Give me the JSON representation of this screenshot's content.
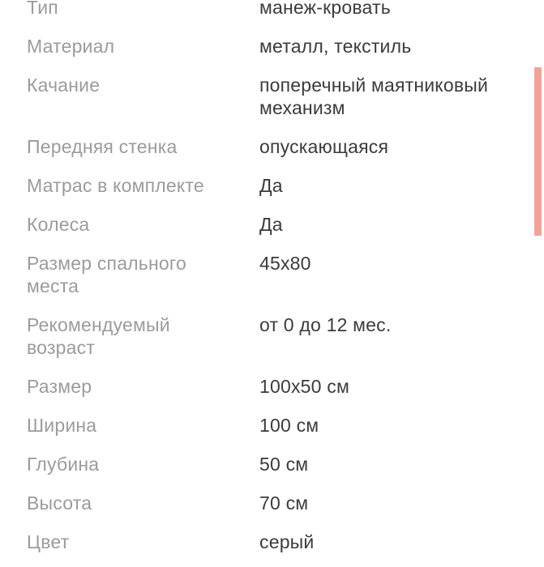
{
  "page": {
    "background_color": "#ffffff",
    "label_color": "#9b9b9b",
    "value_color": "#3b3b3b"
  },
  "scrollbar": {
    "color": "#f2a29a"
  },
  "specs": {
    "rows": [
      {
        "label": "Тип",
        "value": "манеж-кровать"
      },
      {
        "label": "Материал",
        "value": "металл, текстиль"
      },
      {
        "label": "Качание",
        "value": "поперечный маятниковый\nмеханизм"
      },
      {
        "label": "Передняя стенка",
        "value": "опускающаяся"
      },
      {
        "label": "Матрас в комплекте",
        "value": "Да"
      },
      {
        "label": "Колеса",
        "value": "Да"
      },
      {
        "label": "Размер спального\nместа",
        "value": "45x80"
      },
      {
        "label": "Рекомендуемый\nвозраст",
        "value": "от 0 до 12 мес."
      },
      {
        "label": "Размер",
        "value": "100x50 см"
      },
      {
        "label": "Ширина",
        "value": "100 см"
      },
      {
        "label": "Глубина",
        "value": "50 см"
      },
      {
        "label": "Высота",
        "value": "70 см"
      },
      {
        "label": "Цвет",
        "value": "серый"
      }
    ]
  }
}
